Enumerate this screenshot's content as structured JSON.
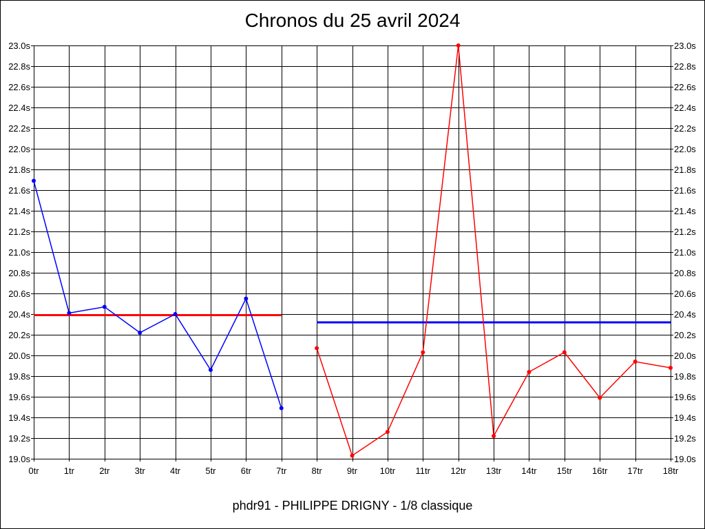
{
  "chart_data": {
    "type": "line",
    "title": "Chronos du 25 avril 2024",
    "subtitle": "phdr91 - PHILIPPE DRIGNY - 1/8 classique",
    "x_categories": [
      "0tr",
      "1tr",
      "2tr",
      "3tr",
      "4tr",
      "5tr",
      "6tr",
      "7tr",
      "8tr",
      "9tr",
      "10tr",
      "11tr",
      "12tr",
      "13tr",
      "14tr",
      "15tr",
      "16tr",
      "17tr",
      "18tr"
    ],
    "y_tick_labels": [
      "19.0s",
      "19.2s",
      "19.4s",
      "19.6s",
      "19.8s",
      "20.0s",
      "20.2s",
      "20.4s",
      "20.6s",
      "20.8s",
      "21.0s",
      "21.2s",
      "21.4s",
      "21.6s",
      "21.8s",
      "22.0s",
      "22.2s",
      "22.4s",
      "22.6s",
      "22.8s",
      "23.0s"
    ],
    "ylim": [
      19.0,
      23.0
    ],
    "ystep": 0.2,
    "grid": true,
    "series": [
      {
        "color": "#0000ff",
        "x": [
          0,
          1,
          2,
          3,
          4,
          5,
          6,
          7
        ],
        "values": [
          21.69,
          20.41,
          20.47,
          20.22,
          20.4,
          19.86,
          20.55,
          19.49
        ]
      },
      {
        "color": "#ff0000",
        "x": [
          8,
          9,
          10,
          11,
          12,
          13,
          14,
          15,
          16,
          17,
          18
        ],
        "values": [
          20.07,
          19.03,
          19.26,
          20.03,
          23.0,
          19.22,
          19.84,
          20.03,
          19.59,
          19.94,
          19.88
        ]
      }
    ],
    "reference_lines": [
      {
        "color": "#ff0000",
        "x_from": 0,
        "x_to": 7,
        "value": 20.39
      },
      {
        "color": "#0000ff",
        "x_from": 8,
        "x_to": 18,
        "value": 20.32
      }
    ]
  }
}
